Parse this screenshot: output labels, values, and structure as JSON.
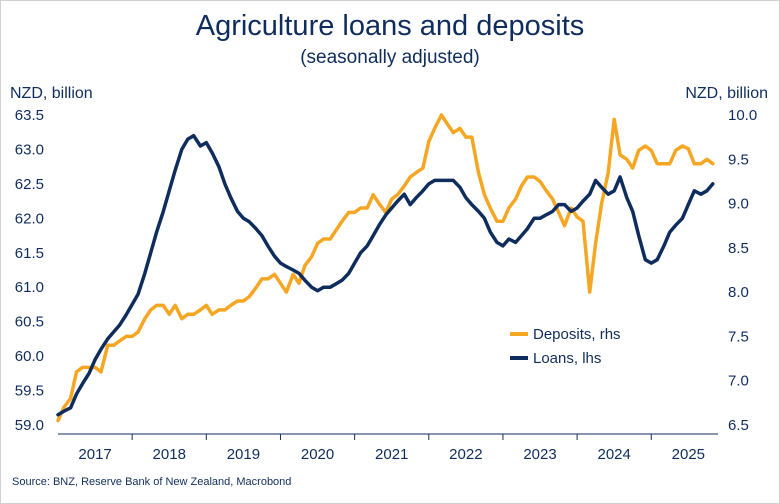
{
  "chart_data": {
    "type": "line",
    "title": "Agriculture loans and deposits",
    "subtitle": "(seasonally adjusted)",
    "left_axis_label": "NZD, billion",
    "right_axis_label": "NZD, billion",
    "source": "Source: BNZ, Reserve Bank of New Zealand, Macrobond",
    "x_ticks": [
      "2017",
      "2018",
      "2019",
      "2020",
      "2021",
      "2022",
      "2023",
      "2024",
      "2025"
    ],
    "xlim": [
      2016.5,
      2025.4
    ],
    "ylim_left": [
      59.0,
      63.5
    ],
    "ylim_right": [
      6.5,
      10.0
    ],
    "y_ticks_left": [
      "59.0",
      "59.5",
      "60.0",
      "60.5",
      "61.0",
      "61.5",
      "62.0",
      "62.5",
      "63.0",
      "63.5"
    ],
    "y_ticks_right": [
      "6.5",
      "7.0",
      "7.5",
      "8.0",
      "8.5",
      "9.0",
      "9.5",
      "10.0"
    ],
    "grid": false,
    "legend_position": "right-middle",
    "series": [
      {
        "name": "Deposits, rhs",
        "axis": "right",
        "color": "#f5a623",
        "x": [
          2016.5,
          2016.58,
          2016.67,
          2016.75,
          2016.83,
          2016.92,
          2017.0,
          2017.08,
          2017.17,
          2017.25,
          2017.33,
          2017.42,
          2017.5,
          2017.58,
          2017.67,
          2017.75,
          2017.83,
          2017.92,
          2018.0,
          2018.08,
          2018.17,
          2018.25,
          2018.33,
          2018.42,
          2018.5,
          2018.58,
          2018.67,
          2018.75,
          2018.83,
          2018.92,
          2019.0,
          2019.08,
          2019.17,
          2019.25,
          2019.33,
          2019.42,
          2019.5,
          2019.58,
          2019.67,
          2019.75,
          2019.83,
          2019.92,
          2020.0,
          2020.08,
          2020.17,
          2020.25,
          2020.33,
          2020.42,
          2020.5,
          2020.58,
          2020.67,
          2020.75,
          2020.83,
          2020.92,
          2021.0,
          2021.08,
          2021.17,
          2021.25,
          2021.33,
          2021.42,
          2021.5,
          2021.58,
          2021.67,
          2021.75,
          2021.83,
          2021.92,
          2022.0,
          2022.08,
          2022.17,
          2022.25,
          2022.33,
          2022.42,
          2022.5,
          2022.58,
          2022.67,
          2022.75,
          2022.83,
          2022.92,
          2023.0,
          2023.08,
          2023.17,
          2023.25,
          2023.33,
          2023.42,
          2023.5,
          2023.58,
          2023.67,
          2023.75,
          2023.83,
          2023.92,
          2024.0,
          2024.08,
          2024.17,
          2024.25,
          2024.33,
          2024.42,
          2024.5,
          2024.58,
          2024.67,
          2024.75,
          2024.83,
          2024.92,
          2025.0,
          2025.08,
          2025.17,
          2025.25,
          2025.33
        ],
        "values": [
          6.55,
          6.7,
          6.8,
          7.1,
          7.15,
          7.15,
          7.15,
          7.1,
          7.4,
          7.4,
          7.45,
          7.5,
          7.5,
          7.55,
          7.7,
          7.8,
          7.85,
          7.85,
          7.75,
          7.85,
          7.7,
          7.75,
          7.75,
          7.8,
          7.85,
          7.75,
          7.8,
          7.8,
          7.85,
          7.9,
          7.9,
          7.95,
          8.05,
          8.15,
          8.15,
          8.2,
          8.1,
          8.0,
          8.2,
          8.1,
          8.3,
          8.4,
          8.55,
          8.6,
          8.6,
          8.7,
          8.8,
          8.9,
          8.9,
          8.95,
          8.95,
          9.1,
          9.0,
          8.9,
          9.05,
          9.1,
          9.2,
          9.3,
          9.35,
          9.4,
          9.7,
          9.85,
          10.0,
          9.9,
          9.8,
          9.85,
          9.75,
          9.75,
          9.35,
          9.1,
          8.95,
          8.8,
          8.8,
          8.95,
          9.05,
          9.2,
          9.3,
          9.3,
          9.25,
          9.15,
          9.05,
          8.9,
          8.75,
          8.95,
          8.85,
          8.8,
          8.0,
          8.55,
          9.0,
          9.35,
          9.95,
          9.55,
          9.5,
          9.4,
          9.6,
          9.65,
          9.6,
          9.45,
          9.45,
          9.45,
          9.6,
          9.65,
          9.62,
          9.45,
          9.45,
          9.5,
          9.45
        ]
      },
      {
        "name": "Loans, lhs",
        "axis": "left",
        "color": "#0f2d5c",
        "x": [
          2016.5,
          2016.58,
          2016.67,
          2016.75,
          2016.83,
          2016.92,
          2017.0,
          2017.08,
          2017.17,
          2017.25,
          2017.33,
          2017.42,
          2017.5,
          2017.58,
          2017.67,
          2017.75,
          2017.83,
          2017.92,
          2018.0,
          2018.08,
          2018.17,
          2018.25,
          2018.33,
          2018.42,
          2018.5,
          2018.58,
          2018.67,
          2018.75,
          2018.83,
          2018.92,
          2019.0,
          2019.08,
          2019.17,
          2019.25,
          2019.33,
          2019.42,
          2019.5,
          2019.58,
          2019.67,
          2019.75,
          2019.83,
          2019.92,
          2020.0,
          2020.08,
          2020.17,
          2020.25,
          2020.33,
          2020.42,
          2020.5,
          2020.58,
          2020.67,
          2020.75,
          2020.83,
          2020.92,
          2021.0,
          2021.08,
          2021.17,
          2021.25,
          2021.33,
          2021.42,
          2021.5,
          2021.58,
          2021.67,
          2021.75,
          2021.83,
          2021.92,
          2022.0,
          2022.08,
          2022.17,
          2022.25,
          2022.33,
          2022.42,
          2022.5,
          2022.58,
          2022.67,
          2022.75,
          2022.83,
          2022.92,
          2023.0,
          2023.08,
          2023.17,
          2023.25,
          2023.33,
          2023.42,
          2023.5,
          2023.58,
          2023.67,
          2023.75,
          2023.83,
          2023.92,
          2024.0,
          2024.08,
          2024.17,
          2024.25,
          2024.33,
          2024.42,
          2024.5,
          2024.58,
          2024.67,
          2024.75,
          2024.83,
          2024.92,
          2025.0,
          2025.08,
          2025.17,
          2025.25,
          2025.33
        ],
        "values": [
          59.15,
          59.2,
          59.25,
          59.45,
          59.6,
          59.75,
          59.95,
          60.1,
          60.25,
          60.35,
          60.45,
          60.6,
          60.75,
          60.9,
          61.2,
          61.5,
          61.8,
          62.1,
          62.4,
          62.7,
          63.0,
          63.15,
          63.2,
          63.05,
          63.1,
          62.95,
          62.75,
          62.5,
          62.3,
          62.1,
          62.0,
          61.95,
          61.85,
          61.75,
          61.6,
          61.45,
          61.35,
          61.3,
          61.25,
          61.2,
          61.1,
          61.0,
          60.95,
          61.0,
          61.0,
          61.05,
          61.1,
          61.2,
          61.35,
          61.5,
          61.6,
          61.75,
          61.9,
          62.05,
          62.15,
          62.25,
          62.35,
          62.2,
          62.3,
          62.4,
          62.5,
          62.55,
          62.55,
          62.55,
          62.55,
          62.45,
          62.3,
          62.2,
          62.1,
          62.0,
          61.8,
          61.65,
          61.6,
          61.7,
          61.65,
          61.75,
          61.85,
          62.0,
          62.0,
          62.05,
          62.1,
          62.2,
          62.2,
          62.1,
          62.15,
          62.25,
          62.35,
          62.55,
          62.45,
          62.35,
          62.4,
          62.6,
          62.3,
          62.1,
          61.75,
          61.4,
          61.35,
          61.4,
          61.6,
          61.8,
          61.9,
          62.0,
          62.2,
          62.4,
          62.35,
          62.4,
          62.5
        ]
      }
    ]
  }
}
